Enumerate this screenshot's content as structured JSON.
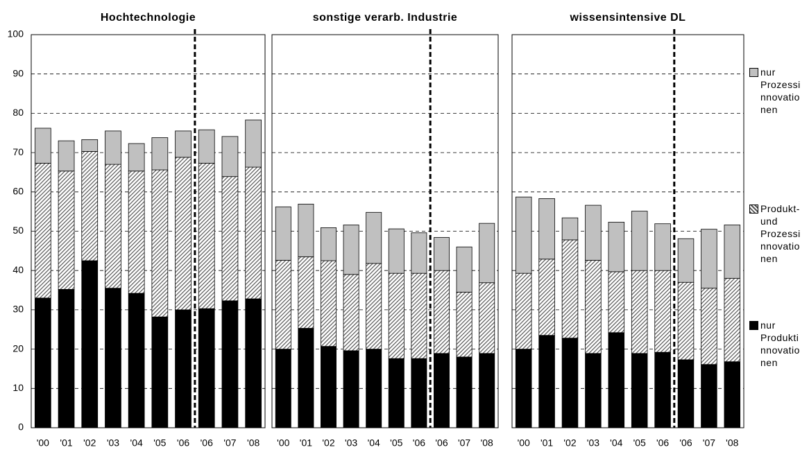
{
  "chart_data": [
    {
      "type": "bar",
      "title": "Hochtechnologie",
      "categories": [
        "'00",
        "'01",
        "'02",
        "'03",
        "'04",
        "'05",
        "'06",
        "'06",
        "'07",
        "'08"
      ],
      "series": [
        {
          "color": "#000000",
          "values": [
            33,
            35.2,
            42.5,
            35.5,
            34.2,
            28.2,
            30,
            30.3,
            32.3,
            32.8
          ]
        },
        {
          "color": "#555555",
          "hatch": true,
          "values": [
            34.3,
            30.1,
            27.8,
            31.5,
            31.1,
            37.4,
            38.8,
            37,
            31.6,
            33.5
          ]
        },
        {
          "color": "#c0c0c0",
          "values": [
            8.9,
            7.7,
            3,
            8.5,
            7,
            8.2,
            6.7,
            8.5,
            10.2,
            12
          ]
        }
      ],
      "ylim": [
        0,
        100
      ],
      "yticks": [
        0,
        10,
        20,
        30,
        40,
        50,
        60,
        70,
        80,
        90,
        100
      ],
      "grid": true,
      "divider_after_index": 6
    },
    {
      "type": "bar",
      "title": "sonstige verarb. Industrie",
      "categories": [
        "'00",
        "'01",
        "'02",
        "'03",
        "'04",
        "'05",
        "'06",
        "'06",
        "'07",
        "'08"
      ],
      "series": [
        {
          "color": "#000000",
          "values": [
            20,
            25.3,
            20.7,
            19.6,
            20,
            17.6,
            17.6,
            18.9,
            18,
            18.9
          ]
        },
        {
          "color": "#555555",
          "hatch": true,
          "values": [
            22.6,
            18.2,
            21.8,
            19.4,
            21.8,
            21.7,
            21.7,
            21.1,
            16.5,
            18
          ]
        },
        {
          "color": "#c0c0c0",
          "values": [
            13.6,
            13.4,
            8.4,
            12.6,
            13,
            11.3,
            10.3,
            8.4,
            11.5,
            15.1
          ]
        }
      ],
      "ylim": [
        0,
        100
      ],
      "grid": true,
      "divider_after_index": 6
    },
    {
      "type": "bar",
      "title": "wissensintensive DL",
      "categories": [
        "'00",
        "'01",
        "'02",
        "'03",
        "'04",
        "'05",
        "'06",
        "'06",
        "'07",
        "'08"
      ],
      "series": [
        {
          "name": "nur Produktinnovationen",
          "color": "#000000",
          "values": [
            20,
            23.5,
            22.8,
            18.9,
            24.2,
            18.9,
            19.2,
            17.3,
            16.1,
            16.8
          ]
        },
        {
          "name": "Produkt- und Prozessinnovationen",
          "color": "#555555",
          "hatch": true,
          "values": [
            19.3,
            19.4,
            25,
            23.7,
            15.5,
            21.1,
            20.8,
            19.7,
            19.4,
            21.2
          ]
        },
        {
          "name": "nur Prozessinnovationen",
          "color": "#c0c0c0",
          "values": [
            19.4,
            15.4,
            5.6,
            14,
            12.6,
            15.1,
            11.9,
            11.1,
            15,
            13.6
          ]
        }
      ],
      "ylim": [
        0,
        100
      ],
      "grid": true,
      "divider_after_index": 6
    }
  ]
}
